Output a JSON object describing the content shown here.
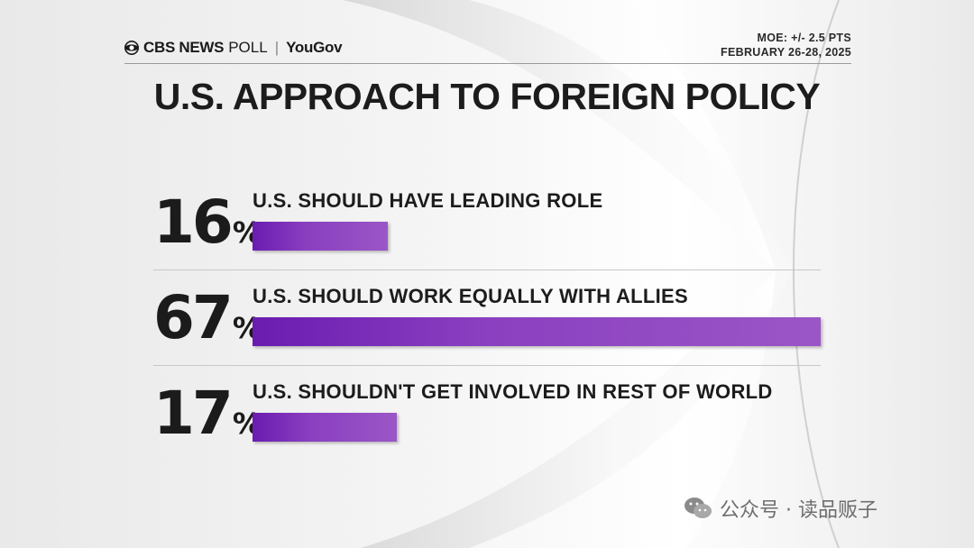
{
  "header": {
    "brand_cbs": "CBS NEWS",
    "brand_poll": "POLL",
    "brand_sep": "|",
    "brand_yougov": "YouGov",
    "moe": "MOE: +/- 2.5 PTS",
    "date": "FEBRUARY 26-28, 2025"
  },
  "chart_data": {
    "type": "bar",
    "orientation": "horizontal",
    "title": "U.S. APPROACH TO FOREIGN POLICY",
    "categories": [
      "U.S. SHOULD HAVE LEADING ROLE",
      "U.S. SHOULD WORK EQUALLY WITH ALLIES",
      "U.S. SHOULDN'T GET INVOLVED IN REST OF WORLD"
    ],
    "values": [
      16,
      67,
      17
    ],
    "value_labels": [
      "16",
      "67",
      "17"
    ],
    "unit": "%",
    "bar_color": "#7b2fbf"
  },
  "watermark": {
    "text": "公众号 · 读品贩子"
  }
}
